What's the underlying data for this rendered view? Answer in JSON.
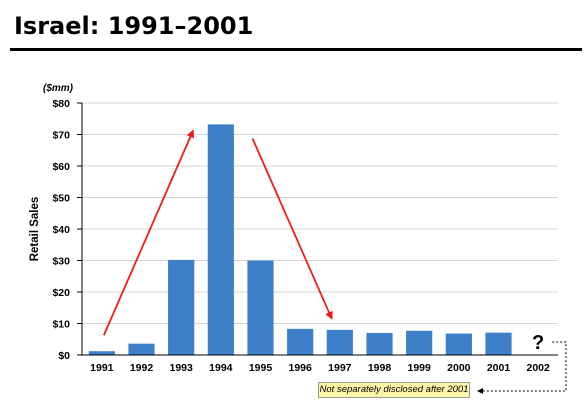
{
  "page": {
    "title": "Israel: 1991–2001"
  },
  "chart_data": {
    "type": "bar",
    "title": "",
    "unit_label": "($mm)",
    "ylabel": "Retail Sales",
    "xlabel": "",
    "ylim": [
      0,
      80
    ],
    "y_ticks": [
      "$0",
      "$10",
      "$20",
      "$30",
      "$40",
      "$50",
      "$60",
      "$70",
      "$80"
    ],
    "categories": [
      "1991",
      "1992",
      "1993",
      "1994",
      "1995",
      "1996",
      "1997",
      "1998",
      "1999",
      "2000",
      "2001",
      "2002"
    ],
    "values": [
      1.2,
      3.6,
      30.2,
      73.2,
      30.0,
      8.3,
      8.0,
      7.0,
      7.7,
      6.8,
      7.1,
      null
    ],
    "missing_marker": "?",
    "annotation": "Not separately disclosed after 2001",
    "grid": true,
    "legend": "none",
    "colors": {
      "bar": "#3d7fc9",
      "arrow": "#ee1c1c",
      "grid": "#d4d4d4"
    }
  }
}
